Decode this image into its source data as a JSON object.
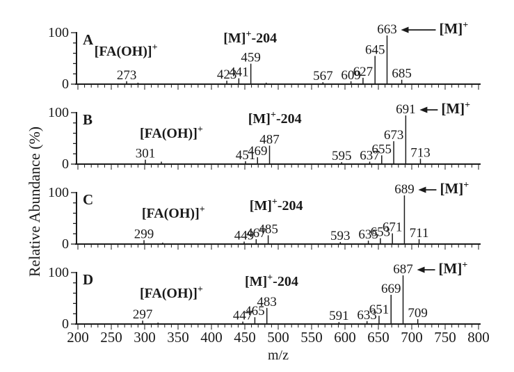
{
  "chart_data": {
    "type": "bar",
    "variant": "mass-spectrum-stick-plot",
    "xlabel": "m/z",
    "ylabel": "Relative Abundance (%)",
    "xlim": [
      200,
      800
    ],
    "ylim": [
      0,
      100
    ],
    "grid": false,
    "x_major_ticks": [
      200,
      250,
      300,
      350,
      400,
      450,
      500,
      550,
      600,
      650,
      700,
      750,
      800
    ],
    "x_minor_tick_step": 10,
    "x_major_tick_step": 50,
    "y_tick_values": [
      0,
      100
    ],
    "y_minor_tick_values": [
      20,
      40,
      60,
      80
    ],
    "panels": [
      {
        "label": "A",
        "base_peak_mz": 663,
        "molecular_ion_annotation": "[M]+",
        "arrow_length": 50,
        "fragment_annotation": {
          "text": "[FA(OH)]+",
          "anchor_mz": 272,
          "y_offset": 33
        },
        "loss_annotation": {
          "text": "[M]+-204",
          "anchor_mz": 458,
          "y_offset": 14
        },
        "peaks": [
          {
            "mz": 273,
            "rel": 6,
            "label": "273"
          },
          {
            "mz": 290,
            "rel": 3,
            "label": ""
          },
          {
            "mz": 423,
            "rel": 7,
            "label": "423"
          },
          {
            "mz": 441,
            "rel": 12,
            "label": "441"
          },
          {
            "mz": 459,
            "rel": 42,
            "label": "459"
          },
          {
            "mz": 482,
            "rel": 3,
            "label": ""
          },
          {
            "mz": 567,
            "rel": 4,
            "label": "567"
          },
          {
            "mz": 609,
            "rel": 6,
            "label": "609"
          },
          {
            "mz": 627,
            "rel": 13,
            "label": "627"
          },
          {
            "mz": 645,
            "rel": 58,
            "label": "645"
          },
          {
            "mz": 663,
            "rel": 100,
            "label": "663"
          },
          {
            "mz": 685,
            "rel": 9,
            "label": "685"
          }
        ]
      },
      {
        "label": "B",
        "base_peak_mz": 691,
        "molecular_ion_annotation": "[M]+",
        "arrow_length": 26,
        "fragment_annotation": {
          "text": "[FA(OH)]+",
          "anchor_mz": 340,
          "y_offset": 36
        },
        "loss_annotation": {
          "text": "[M]+-204",
          "anchor_mz": 495,
          "y_offset": 15
        },
        "peaks": [
          {
            "mz": 301,
            "rel": 9,
            "label": "301"
          },
          {
            "mz": 325,
            "rel": 5,
            "label": ""
          },
          {
            "mz": 451,
            "rel": 6,
            "label": "451"
          },
          {
            "mz": 469,
            "rel": 14,
            "label": "469"
          },
          {
            "mz": 487,
            "rel": 38,
            "label": "487"
          },
          {
            "mz": 595,
            "rel": 4,
            "label": "595"
          },
          {
            "mz": 637,
            "rel": 5,
            "label": "637"
          },
          {
            "mz": 655,
            "rel": 18,
            "label": "655"
          },
          {
            "mz": 673,
            "rel": 47,
            "label": "673"
          },
          {
            "mz": 691,
            "rel": 100,
            "label": "691"
          },
          {
            "mz": 713,
            "rel": 11,
            "label": "713"
          }
        ]
      },
      {
        "label": "C",
        "base_peak_mz": 689,
        "molecular_ion_annotation": "[M]+",
        "arrow_length": 26,
        "fragment_annotation": {
          "text": "[FA(OH)]+",
          "anchor_mz": 343,
          "y_offset": 36
        },
        "loss_annotation": {
          "text": "[M]+-204",
          "anchor_mz": 497,
          "y_offset": 25
        },
        "peaks": [
          {
            "mz": 299,
            "rel": 8,
            "label": "299"
          },
          {
            "mz": 327,
            "rel": 3,
            "label": ""
          },
          {
            "mz": 449,
            "rel": 5,
            "label": "449"
          },
          {
            "mz": 467,
            "rel": 10,
            "label": "467"
          },
          {
            "mz": 485,
            "rel": 18,
            "label": "485"
          },
          {
            "mz": 593,
            "rel": 4,
            "label": "593"
          },
          {
            "mz": 635,
            "rel": 7,
            "label": "635"
          },
          {
            "mz": 653,
            "rel": 12,
            "label": "653"
          },
          {
            "mz": 671,
            "rel": 22,
            "label": "671"
          },
          {
            "mz": 689,
            "rel": 100,
            "label": "689"
          },
          {
            "mz": 711,
            "rel": 10,
            "label": "711"
          }
        ]
      },
      {
        "label": "D",
        "base_peak_mz": 687,
        "molecular_ion_annotation": "[M]+",
        "arrow_length": 26,
        "fragment_annotation": {
          "text": "[FA(OH)]+",
          "anchor_mz": 340,
          "y_offset": 36
        },
        "loss_annotation": {
          "text": "[M]+-204",
          "anchor_mz": 490,
          "y_offset": 19
        },
        "peaks": [
          {
            "mz": 297,
            "rel": 7,
            "label": "297"
          },
          {
            "mz": 320,
            "rel": 3,
            "label": ""
          },
          {
            "mz": 447,
            "rel": 5,
            "label": "447"
          },
          {
            "mz": 465,
            "rel": 14,
            "label": "465"
          },
          {
            "mz": 483,
            "rel": 33,
            "label": "483"
          },
          {
            "mz": 591,
            "rel": 4,
            "label": "591"
          },
          {
            "mz": 633,
            "rel": 6,
            "label": "633"
          },
          {
            "mz": 651,
            "rel": 17,
            "label": "651"
          },
          {
            "mz": 669,
            "rel": 60,
            "label": "669"
          },
          {
            "mz": 687,
            "rel": 100,
            "label": "687"
          },
          {
            "mz": 709,
            "rel": 10,
            "label": "709"
          }
        ]
      }
    ]
  }
}
